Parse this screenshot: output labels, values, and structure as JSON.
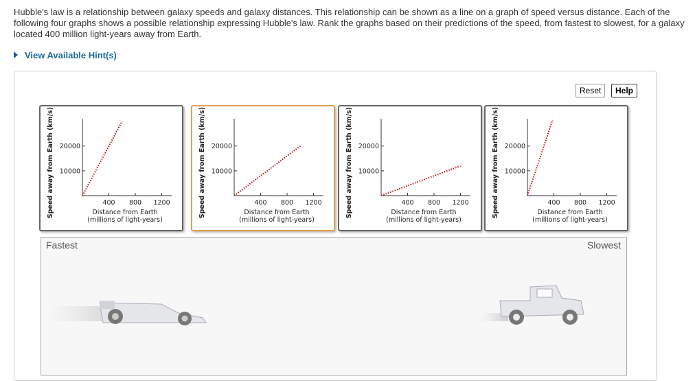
{
  "question": "Hubble's law is a relationship between galaxy speeds and galaxy distances. This relationship can be shown as a line on a graph of speed versus distance. Each of the following four graphs shows a possible relationship expressing Hubble's law. Rank the graphs based on their predictions of the speed, from fastest to slowest, for a galaxy located 400 million light-years away from Earth.",
  "hint_link": "View Available Hint(s)",
  "buttons": [
    "Reset",
    "Help"
  ],
  "rank_labels": {
    "start": "Fastest",
    "end": "Slowest"
  },
  "chart_data": [
    {
      "type": "line",
      "ylabel": "Speed away from Earth (km/s)",
      "xlabel": [
        "Distance from Earth",
        "(millions of light-years)"
      ],
      "x": [
        0,
        600
      ],
      "values": [
        0,
        30000
      ],
      "color": "#cc0000",
      "xlim": [
        0,
        1350
      ],
      "ylim": [
        0,
        31000
      ],
      "xticks": [
        400,
        800,
        1200
      ],
      "yticks": [
        10000,
        20000
      ]
    },
    {
      "type": "line",
      "ylabel": "Speed away from Earth (km/s)",
      "xlabel": [
        "Distance from Earth",
        "(millions of light-years)"
      ],
      "x": [
        0,
        1000
      ],
      "values": [
        0,
        20000
      ],
      "color": "#cc0000",
      "xlim": [
        0,
        1350
      ],
      "ylim": [
        0,
        31000
      ],
      "xticks": [
        400,
        800,
        1200
      ],
      "yticks": [
        10000,
        20000
      ]
    },
    {
      "type": "line",
      "ylabel": "Speed away from Earth (km/s)",
      "xlabel": [
        "Distance from Earth",
        "(millions of light-years)"
      ],
      "x": [
        0,
        1200
      ],
      "values": [
        0,
        12000
      ],
      "color": "#cc0000",
      "xlim": [
        0,
        1350
      ],
      "ylim": [
        0,
        31000
      ],
      "xticks": [
        400,
        800,
        1200
      ],
      "yticks": [
        10000,
        20000
      ]
    },
    {
      "type": "line",
      "ylabel": "Speed away from Earth (km/s)",
      "xlabel": [
        "Distance from Earth",
        "(millions of light-years)"
      ],
      "x": [
        0,
        380
      ],
      "values": [
        0,
        30500
      ],
      "color": "#cc0000",
      "xlim": [
        0,
        1350
      ],
      "ylim": [
        0,
        31000
      ],
      "xticks": [
        400,
        800,
        1200
      ],
      "yticks": [
        10000,
        20000
      ]
    }
  ]
}
